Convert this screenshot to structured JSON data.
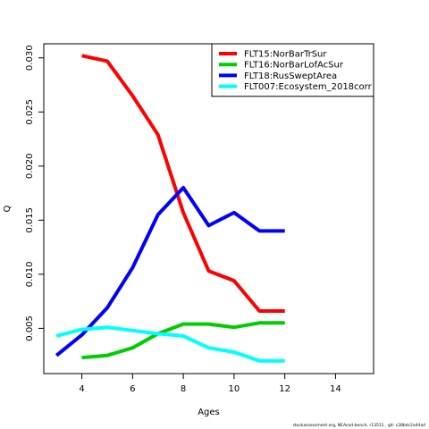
{
  "chart_data": {
    "type": "line",
    "xlabel": "Ages",
    "ylabel": "Q",
    "xlim": [
      2.5,
      15.5
    ],
    "ylim": [
      0.00082,
      0.0313
    ],
    "xticks": [
      "4",
      "6",
      "8",
      "10",
      "12",
      "14"
    ],
    "yticks": [
      "0.005",
      "0.010",
      "0.015",
      "0.020",
      "0.025",
      "0.030"
    ],
    "grid": false,
    "legend_position": "top-right",
    "series": [
      {
        "name": "FLT15:NorBarTrSur",
        "color": "#ff0000",
        "x": [
          4,
          5,
          6,
          7,
          8,
          9,
          10,
          11,
          12
        ],
        "values": [
          0.0302,
          0.0297,
          0.0265,
          0.0229,
          0.0157,
          0.0103,
          0.0094,
          0.0066,
          0.0066
        ]
      },
      {
        "name": "FLT16:NorBarLofAcSur",
        "color": "#00cd00",
        "x": [
          4,
          5,
          6,
          7,
          8,
          9,
          10,
          11,
          12
        ],
        "values": [
          0.0023,
          0.0025,
          0.0032,
          0.0045,
          0.0054,
          0.0054,
          0.0051,
          0.0055,
          0.0055
        ]
      },
      {
        "name": "FLT18:RusSweptArea",
        "color": "#0000ff",
        "x": [
          3,
          4,
          5,
          6,
          7,
          8,
          9,
          10,
          11,
          12
        ],
        "values": [
          0.0025,
          0.0044,
          0.0069,
          0.0106,
          0.0155,
          0.018,
          0.0145,
          0.0157,
          0.014,
          0.014
        ]
      },
      {
        "name": "FLT007:Ecosystem_2018corr",
        "color": "#00ffff",
        "x": [
          3,
          4,
          5,
          6,
          7,
          8,
          9,
          10,
          11,
          12
        ],
        "values": [
          0.0043,
          0.0049,
          0.0051,
          0.0048,
          0.0045,
          0.0043,
          0.0032,
          0.0028,
          0.002,
          0.002
        ]
      }
    ]
  },
  "footer": "stockassessment.org, NEAcod-bench, r13511 , git: c28bdc2a44ad"
}
